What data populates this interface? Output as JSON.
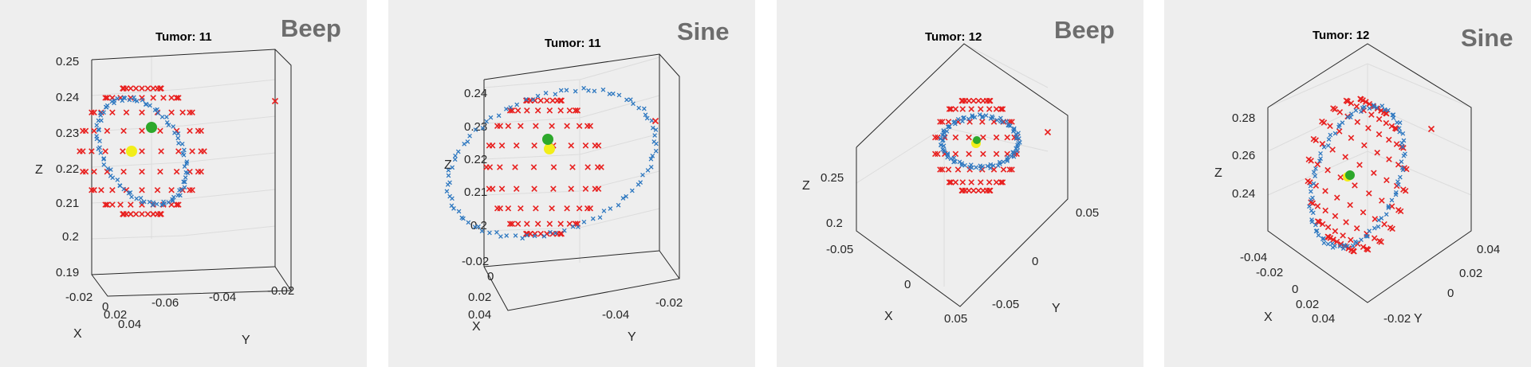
{
  "colors": {
    "shell": "#e8201f",
    "trajectory": "#2e78c0",
    "yellow": "#f2ee1a",
    "green": "#2da82b",
    "panel_bg": "#eeeeee",
    "tag": "#6d6d6d"
  },
  "chart_data": [
    {
      "type": "scatter3d",
      "title": "Tumor: 11",
      "tag": "Beep",
      "xlabel": "X",
      "ylabel": "Y",
      "zlabel": "Z",
      "z_ticks": [
        "0.25",
        "0.24",
        "0.23",
        "0.22",
        "0.21",
        "0.2",
        "0.19"
      ],
      "x_ticks": [
        "-0.02",
        "0",
        "0.02",
        "0.04"
      ],
      "y_ticks": [
        "-0.06",
        "-0.04",
        "-0.02"
      ],
      "series": [
        {
          "marker": "x",
          "color": "#e8201f",
          "shape": "spherical shell",
          "center": [
            0.01,
            -0.045,
            0.218
          ],
          "radius": 0.022
        },
        {
          "marker": "x",
          "color": "#2e78c0",
          "shape": "trajectory loop"
        },
        {
          "marker": "o",
          "color": "#f2ee1a"
        },
        {
          "marker": "o",
          "color": "#2da82b"
        }
      ]
    },
    {
      "type": "scatter3d",
      "title": "Tumor: 11",
      "tag": "Sine",
      "xlabel": "X",
      "ylabel": "Y",
      "zlabel": "Z",
      "z_ticks": [
        "0.24",
        "0.23",
        "0.22",
        "0.21",
        "0.2"
      ],
      "x_ticks": [
        "-0.02",
        "0",
        "0.02",
        "0.04"
      ],
      "y_ticks": [
        "-0.04",
        "-0.02"
      ],
      "series": [
        {
          "marker": "x",
          "color": "#e8201f",
          "shape": "spherical shell"
        },
        {
          "marker": "x",
          "color": "#2e78c0",
          "shape": "trajectory loop"
        },
        {
          "marker": "o",
          "color": "#f2ee1a"
        },
        {
          "marker": "o",
          "color": "#2da82b"
        }
      ]
    },
    {
      "type": "scatter3d",
      "title": "Tumor: 12",
      "tag": "Beep",
      "xlabel": "X",
      "ylabel": "Y",
      "zlabel": "Z",
      "z_ticks": [
        "0.25",
        "0.2"
      ],
      "x_ticks": [
        "-0.05",
        "0",
        "0.05"
      ],
      "y_ticks": [
        "0.05",
        "0",
        "-0.05"
      ],
      "series": [
        {
          "marker": "x",
          "color": "#e8201f",
          "shape": "spherical shell"
        },
        {
          "marker": "x",
          "color": "#2e78c0",
          "shape": "trajectory loop"
        },
        {
          "marker": "o",
          "color": "#f2ee1a"
        },
        {
          "marker": "o",
          "color": "#2da82b"
        }
      ]
    },
    {
      "type": "scatter3d",
      "title": "Tumor: 12",
      "tag": "Sine",
      "xlabel": "X",
      "ylabel": "Y",
      "zlabel": "Z",
      "z_ticks": [
        "0.28",
        "0.26",
        "0.24"
      ],
      "x_ticks": [
        "-0.04",
        "-0.02",
        "0",
        "0.02",
        "0.04"
      ],
      "y_ticks": [
        "0.04",
        "0.02",
        "0",
        "-0.02"
      ],
      "series": [
        {
          "marker": "x",
          "color": "#e8201f",
          "shape": "spherical shell"
        },
        {
          "marker": "x",
          "color": "#2e78c0",
          "shape": "trajectory loop"
        },
        {
          "marker": "o",
          "color": "#f2ee1a"
        },
        {
          "marker": "o",
          "color": "#2da82b"
        }
      ]
    }
  ]
}
